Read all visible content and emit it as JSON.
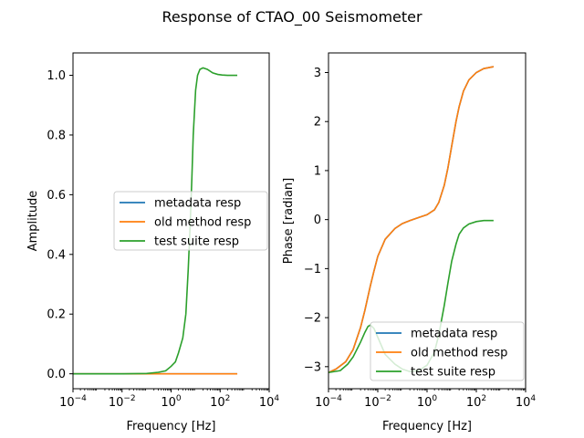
{
  "figure": {
    "title": "Response of CTAO_00 Seismometer"
  },
  "chart_data": [
    {
      "type": "line",
      "xscale": "log",
      "xlabel": "Frequency [Hz]",
      "ylabel": "Amplitude",
      "xlim": [
        0.0001,
        10000
      ],
      "ylim": [
        -0.05,
        1.075
      ],
      "legend_position": "center-right",
      "x_ticks": [
        {
          "value": 0.0001,
          "base": "10",
          "exp": "−4"
        },
        {
          "value": 0.01,
          "base": "10",
          "exp": "−2"
        },
        {
          "value": 1,
          "base": "10",
          "exp": "0"
        },
        {
          "value": 100,
          "base": "10",
          "exp": "2"
        },
        {
          "value": 10000,
          "base": "10",
          "exp": "4"
        }
      ],
      "y_ticks": [
        {
          "value": 0.0,
          "label": "0.0"
        },
        {
          "value": 0.2,
          "label": "0.2"
        },
        {
          "value": 0.4,
          "label": "0.4"
        },
        {
          "value": 0.6,
          "label": "0.6"
        },
        {
          "value": 0.8,
          "label": "0.8"
        },
        {
          "value": 1.0,
          "label": "1.0"
        }
      ],
      "series": [
        {
          "name": "metadata resp",
          "color": "#1f77b4",
          "x": [
            0.0001,
            0.001,
            0.01,
            0.1,
            1,
            10,
            100,
            500
          ],
          "y": [
            0,
            0,
            0,
            0,
            0,
            0,
            0,
            0
          ]
        },
        {
          "name": "old method resp",
          "color": "#ff7f0e",
          "x": [
            0.0001,
            0.001,
            0.01,
            0.1,
            1,
            10,
            100,
            500
          ],
          "y": [
            0,
            0,
            0,
            0,
            0,
            0,
            0,
            0
          ]
        },
        {
          "name": "test suite resp",
          "color": "#2ca02c",
          "x": [
            0.0001,
            0.01,
            0.1,
            0.3,
            0.6,
            1,
            1.5,
            2,
            3,
            4,
            5,
            6,
            7,
            8,
            10,
            12,
            15,
            20,
            30,
            50,
            80,
            120,
            200,
            500
          ],
          "y": [
            0.0,
            0.0,
            0.001,
            0.005,
            0.01,
            0.025,
            0.04,
            0.07,
            0.12,
            0.2,
            0.35,
            0.5,
            0.65,
            0.8,
            0.95,
            1.0,
            1.02,
            1.025,
            1.02,
            1.008,
            1.003,
            1.001,
            1.0,
            1.0
          ]
        }
      ]
    },
    {
      "type": "line",
      "xscale": "log",
      "xlabel": "Frequency [Hz]",
      "ylabel": "Phase [radian]",
      "xlim": [
        0.0001,
        10000
      ],
      "ylim": [
        -3.45,
        3.4
      ],
      "legend_position": "lower-right",
      "x_ticks": [
        {
          "value": 0.0001,
          "base": "10",
          "exp": "−4"
        },
        {
          "value": 0.01,
          "base": "10",
          "exp": "−2"
        },
        {
          "value": 1,
          "base": "10",
          "exp": "0"
        },
        {
          "value": 100,
          "base": "10",
          "exp": "2"
        },
        {
          "value": 10000,
          "base": "10",
          "exp": "4"
        }
      ],
      "y_ticks": [
        {
          "value": -3,
          "label": "−3"
        },
        {
          "value": -2,
          "label": "−2"
        },
        {
          "value": -1,
          "label": "−1"
        },
        {
          "value": 0,
          "label": "0"
        },
        {
          "value": 1,
          "label": "1"
        },
        {
          "value": 2,
          "label": "2"
        },
        {
          "value": 3,
          "label": "3"
        }
      ],
      "series": [
        {
          "name": "metadata resp",
          "color": "#1f77b4",
          "x": [
            0.0001,
            0.0002,
            0.0005,
            0.001,
            0.002,
            0.003,
            0.005,
            0.007,
            0.01,
            0.02,
            0.05,
            0.1,
            0.2,
            0.5,
            1,
            2,
            3,
            5,
            7,
            10,
            15,
            20,
            30,
            50,
            100,
            200,
            500
          ],
          "y": [
            -3.12,
            -3.05,
            -2.9,
            -2.65,
            -2.2,
            -1.85,
            -1.35,
            -1.05,
            -0.75,
            -0.4,
            -0.18,
            -0.08,
            -0.02,
            0.05,
            0.1,
            0.2,
            0.35,
            0.7,
            1.05,
            1.5,
            2.0,
            2.3,
            2.62,
            2.85,
            3.0,
            3.08,
            3.12
          ]
        },
        {
          "name": "old method resp",
          "color": "#ff7f0e",
          "x": [
            0.0001,
            0.0002,
            0.0005,
            0.001,
            0.002,
            0.003,
            0.005,
            0.007,
            0.01,
            0.02,
            0.05,
            0.1,
            0.2,
            0.5,
            1,
            2,
            3,
            5,
            7,
            10,
            15,
            20,
            30,
            50,
            100,
            200,
            500
          ],
          "y": [
            -3.12,
            -3.05,
            -2.9,
            -2.65,
            -2.2,
            -1.85,
            -1.35,
            -1.05,
            -0.75,
            -0.4,
            -0.18,
            -0.08,
            -0.02,
            0.05,
            0.1,
            0.2,
            0.35,
            0.7,
            1.05,
            1.5,
            2.0,
            2.3,
            2.62,
            2.85,
            3.0,
            3.08,
            3.12
          ]
        },
        {
          "name": "test suite resp",
          "color": "#2ca02c",
          "x": [
            0.0001,
            0.0003,
            0.0006,
            0.001,
            0.002,
            0.003,
            0.004,
            0.005,
            0.007,
            0.01,
            0.02,
            0.05,
            0.1,
            0.2,
            0.5,
            1,
            2,
            3,
            5,
            7,
            10,
            15,
            20,
            30,
            50,
            100,
            200,
            500
          ],
          "y": [
            -3.12,
            -3.08,
            -2.95,
            -2.8,
            -2.5,
            -2.3,
            -2.18,
            -2.15,
            -2.22,
            -2.4,
            -2.75,
            -2.95,
            -3.05,
            -3.1,
            -3.07,
            -2.97,
            -2.7,
            -2.35,
            -1.75,
            -1.3,
            -0.85,
            -0.5,
            -0.3,
            -0.17,
            -0.09,
            -0.04,
            -0.02,
            -0.02
          ]
        }
      ]
    }
  ]
}
